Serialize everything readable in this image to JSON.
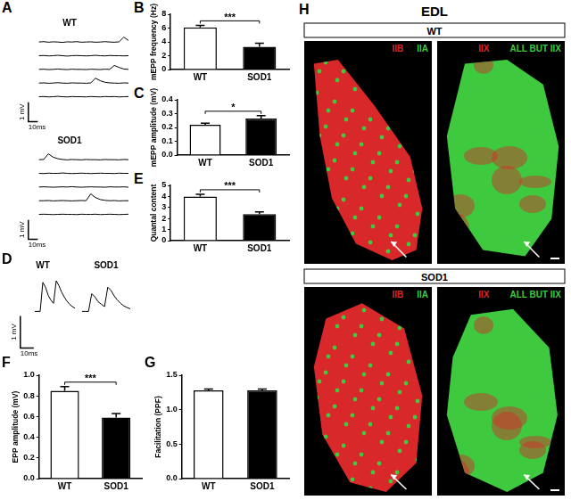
{
  "chart_data": [
    {
      "panel": "A",
      "type": "line",
      "title": "WT",
      "x": [
        0,
        5,
        10,
        15,
        20,
        25,
        30,
        35,
        40,
        45,
        50,
        55,
        60,
        65,
        70,
        75,
        80,
        85,
        90,
        95
      ],
      "series": [
        {
          "color": "#000000",
          "values": [
            2.8,
            2.82,
            2.79,
            2.81,
            2.8,
            2.78,
            2.81,
            2.8,
            2.82,
            2.79,
            2.8,
            2.81,
            2.79,
            2.8,
            2.82,
            2.8,
            2.79,
            2.81,
            3.05,
            2.88
          ]
        },
        {
          "color": "#000000",
          "values": [
            2.1,
            2.11,
            2.09,
            2.1,
            2.12,
            2.1,
            2.08,
            2.1,
            2.11,
            2.1,
            2.09,
            2.1,
            2.12,
            2.1,
            2.09,
            2.11,
            2.1,
            2.1,
            2.09,
            2.1
          ]
        },
        {
          "color": "#000000",
          "values": [
            1.4,
            1.41,
            1.39,
            1.4,
            1.42,
            1.4,
            1.39,
            1.41,
            1.4,
            1.4,
            1.39,
            1.41,
            1.4,
            1.39,
            1.41,
            1.4,
            1.6,
            1.5,
            1.42,
            1.4
          ]
        },
        {
          "color": "#000000",
          "values": [
            0.7,
            0.71,
            0.69,
            0.7,
            0.72,
            0.7,
            0.69,
            0.71,
            0.7,
            0.7,
            0.69,
            0.71,
            0.95,
            0.82,
            0.74,
            0.71,
            0.7,
            0.69,
            0.71,
            0.7
          ]
        },
        {
          "color": "#000000",
          "values": [
            0,
            0.01,
            -0.01,
            0,
            0.02,
            0,
            -0.01,
            0.01,
            0,
            0,
            -0.01,
            0.01,
            0,
            -0.01,
            0.01,
            0,
            0.01,
            -0.01,
            0,
            0.01
          ]
        }
      ],
      "xlim": [
        -30,
        95
      ],
      "ylim": [
        -1.8,
        3.4
      ],
      "tick_labels": false,
      "grid": false,
      "scale_bar": {
        "x_length": 10,
        "x_label": "10ms",
        "y_length": 1,
        "y_label": "1 mV"
      }
    },
    {
      "type": "line",
      "title": "SOD1",
      "x": [
        0,
        5,
        10,
        15,
        20,
        25,
        30,
        35,
        40,
        45,
        50,
        55,
        60,
        65,
        70,
        75,
        80,
        85,
        90,
        95
      ],
      "series": [
        {
          "color": "#000000",
          "values": [
            2.8,
            2.81,
            3.1,
            2.93,
            2.85,
            2.81,
            2.79,
            2.81,
            2.8,
            2.79,
            2.81,
            2.8,
            2.8,
            2.79,
            2.81,
            2.8,
            2.8,
            2.79,
            2.81,
            2.8
          ]
        },
        {
          "color": "#000000",
          "values": [
            2.1,
            2.09,
            2.11,
            2.1,
            2.1,
            2.12,
            2.1,
            2.09,
            2.1,
            2.11,
            2.1,
            2.09,
            2.1,
            2.11,
            2.1,
            2.1,
            2.09,
            2.11,
            2.1,
            2.1
          ]
        },
        {
          "color": "#000000",
          "values": [
            1.4,
            1.41,
            1.4,
            1.39,
            1.4,
            1.41,
            1.4,
            1.42,
            1.4,
            1.39,
            1.4,
            1.41,
            1.4,
            1.4,
            1.39,
            1.41,
            1.4,
            1.4,
            1.41,
            1.39
          ]
        },
        {
          "color": "#000000",
          "values": [
            0.7,
            0.7,
            0.71,
            0.69,
            0.7,
            0.71,
            0.7,
            0.69,
            0.7,
            0.71,
            0.7,
            1.05,
            0.86,
            0.76,
            0.72,
            0.7,
            0.71,
            0.69,
            0.7,
            0.7
          ]
        },
        {
          "color": "#000000",
          "values": [
            0,
            0.01,
            0,
            -0.01,
            0,
            0.01,
            0,
            0,
            -0.01,
            0.01,
            0,
            0,
            0.01,
            -0.01,
            0,
            0.01,
            0,
            -0.01,
            0,
            0.01
          ]
        }
      ],
      "xlim": [
        -30,
        95
      ],
      "ylim": [
        -1.8,
        3.4
      ],
      "tick_labels": false,
      "grid": false,
      "scale_bar": {
        "x_length": 10,
        "x_label": "10ms",
        "y_length": 1,
        "y_label": "1 mV"
      }
    },
    {
      "panel": "B",
      "type": "bar",
      "categories": [
        "WT",
        "SOD1"
      ],
      "values": [
        6.1,
        3.3
      ],
      "errors": [
        0.3,
        0.5
      ],
      "colors": [
        "#ffffff",
        "#000000"
      ],
      "y_label": "mEPP frequency (Hz)",
      "ylim": [
        0,
        8
      ],
      "yticks": [
        0,
        2,
        4,
        6,
        8
      ],
      "annotation": "***",
      "grid": false
    },
    {
      "panel": "C",
      "type": "bar",
      "categories": [
        "WT",
        "SOD1"
      ],
      "values": [
        0.22,
        0.265
      ],
      "errors": [
        0.01,
        0.02
      ],
      "colors": [
        "#ffffff",
        "#000000"
      ],
      "y_label": "mEPP amplitude (mV)",
      "ylim": [
        0,
        0.4
      ],
      "yticks": [
        {
          "value": 0,
          "label": "0.0"
        },
        0.1,
        0.2,
        0.3,
        0.4
      ],
      "annotation": "*",
      "grid": false
    },
    {
      "panel": "D",
      "type": "line",
      "title": "WT",
      "x": [
        0,
        2,
        4,
        6,
        8,
        10,
        12,
        14,
        16,
        18,
        20,
        22,
        24,
        26,
        28,
        30
      ],
      "series": [
        {
          "color": "#000000",
          "values": [
            0,
            0,
            0,
            0.9,
            0.75,
            0.5,
            0.35,
            0.25,
            0.95,
            0.8,
            0.6,
            0.45,
            0.32,
            0.22,
            0.15,
            0.1
          ]
        }
      ],
      "xlim": [
        -18,
        30
      ],
      "ylim": [
        -1.4,
        1.2
      ],
      "tick_labels": false,
      "grid": false,
      "scale_bar": {
        "x_length": 10,
        "x_label": "10ms",
        "y_length": 1,
        "y_label": "1 mV"
      }
    },
    {
      "type": "line",
      "title": "SOD1",
      "x": [
        0,
        2,
        4,
        6,
        8,
        10,
        12,
        14,
        16,
        18,
        20,
        22,
        24,
        26,
        28,
        30
      ],
      "series": [
        {
          "color": "#000000",
          "values": [
            0,
            0,
            0,
            0.55,
            0.45,
            0.3,
            0.22,
            0.15,
            0.75,
            0.65,
            0.48,
            0.35,
            0.25,
            0.17,
            0.12,
            0.08
          ]
        }
      ],
      "xlim": [
        0,
        30
      ],
      "ylim": [
        -1.4,
        1.2
      ],
      "tick_labels": false,
      "grid": false
    },
    {
      "panel": "E",
      "type": "bar",
      "categories": [
        "WT",
        "SOD1"
      ],
      "values": [
        4.0,
        2.4
      ],
      "errors": [
        0.2,
        0.2
      ],
      "colors": [
        "#ffffff",
        "#000000"
      ],
      "y_label": "Quantal content",
      "ylim": [
        0,
        5
      ],
      "yticks": [
        0,
        1,
        2,
        3,
        4,
        5
      ],
      "annotation": "***",
      "grid": false
    },
    {
      "panel": "F",
      "type": "bar",
      "categories": [
        "WT",
        "SOD1"
      ],
      "values": [
        0.85,
        0.59
      ],
      "errors": [
        0.04,
        0.04
      ],
      "colors": [
        "#ffffff",
        "#000000"
      ],
      "y_label": "EPP amplitude (mV)",
      "ylim": [
        0,
        1.0
      ],
      "yticks": [
        {
          "value": 0,
          "label": "0.0"
        },
        0.2,
        0.4,
        0.6,
        0.8,
        {
          "value": 1.0,
          "label": "1.0"
        }
      ],
      "annotation": "***",
      "grid": false
    },
    {
      "panel": "G",
      "type": "bar",
      "categories": [
        "WT",
        "SOD1"
      ],
      "values": [
        1.28,
        1.28
      ],
      "errors": [
        0.02,
        0.02
      ],
      "colors": [
        "#ffffff",
        "#000000"
      ],
      "y_label": "Facilitation (PPF)",
      "ylim": [
        0,
        1.5
      ],
      "yticks": [
        {
          "value": 0,
          "label": "0.0"
        },
        0.5,
        {
          "value": 1.0,
          "label": "1.0"
        },
        1.5
      ],
      "grid": false
    }
  ],
  "micrographs": {
    "panel": "H",
    "title": "EDL",
    "rows": [
      {
        "group": "WT",
        "images": [
          {
            "stains": [
              {
                "label": "IIB",
                "color": "#d8282a"
              },
              {
                "label": "IIA",
                "color": "#3ec93e"
              }
            ]
          },
          {
            "stains": [
              {
                "label": "IIX",
                "color": "#d8282a"
              },
              {
                "label": "ALL BUT IIX",
                "color": "#3ec93e"
              }
            ]
          }
        ]
      },
      {
        "group": "SOD1",
        "images": [
          {
            "stains": [
              {
                "label": "IIB",
                "color": "#d8282a"
              },
              {
                "label": "IIA",
                "color": "#3ec93e"
              }
            ]
          },
          {
            "stains": [
              {
                "label": "IIX",
                "color": "#d8282a"
              },
              {
                "label": "ALL BUT IIX",
                "color": "#3ec93e"
              }
            ]
          }
        ]
      }
    ]
  }
}
